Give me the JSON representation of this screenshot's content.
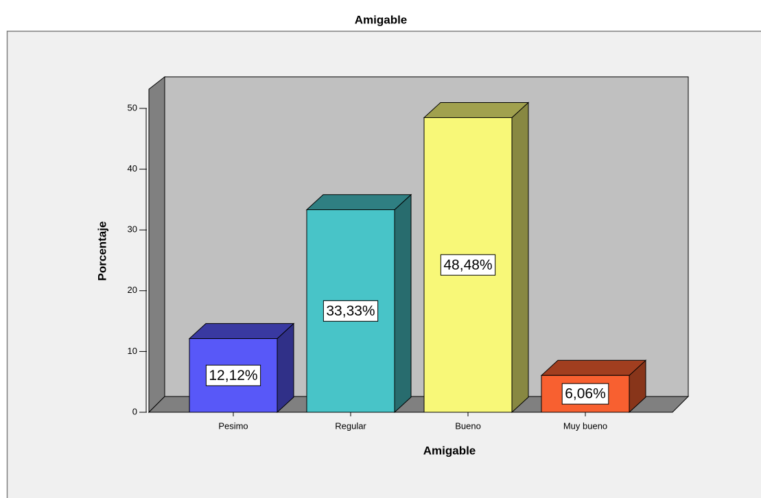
{
  "chart_data": {
    "type": "bar3d",
    "title": "Amigable",
    "x_label": "Amigable",
    "y_label": "Porcentaje",
    "categories": [
      "Pesimo",
      "Regular",
      "Bueno",
      "Muy bueno"
    ],
    "values": [
      12.12,
      33.33,
      48.48,
      6.06
    ],
    "value_labels": [
      "12,12%",
      "33,33%",
      "48,48%",
      "6,06%"
    ],
    "colors": [
      "#5858f8",
      "#48c4c8",
      "#f8f878",
      "#f86030"
    ],
    "ylim": [
      0,
      53
    ],
    "yticks": [
      0,
      10,
      20,
      30,
      40,
      50
    ]
  }
}
